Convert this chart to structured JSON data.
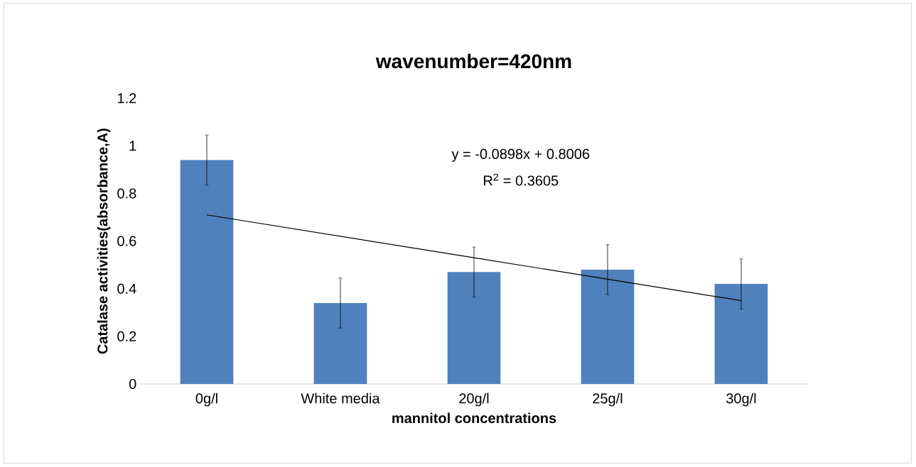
{
  "chart_data": {
    "type": "bar",
    "title": "wavenumber=420nm",
    "xlabel": "mannitol concentrations",
    "ylabel": "Catalase activities(absorbance,A)",
    "categories": [
      "0g/l",
      "White media",
      "20g/l",
      "25g/l",
      "30g/l"
    ],
    "series": [
      {
        "color": "#4f81bd",
        "values": [
          0.94,
          0.34,
          0.47,
          0.48,
          0.42
        ],
        "errors": [
          0.105,
          0.105,
          0.105,
          0.105,
          0.105
        ]
      },
      {
        "type": "line",
        "color": "#000000",
        "values": [
          0.71,
          0.62,
          0.53,
          0.44,
          0.35
        ]
      }
    ],
    "ylim": [
      0,
      1.2
    ],
    "yticks": [
      0,
      0.2,
      0.4,
      0.6,
      0.8,
      1,
      1.2
    ],
    "annotations": [
      "y = -0.0898x + 0.8006",
      "R$^{2}$ = 0.3605"
    ]
  }
}
